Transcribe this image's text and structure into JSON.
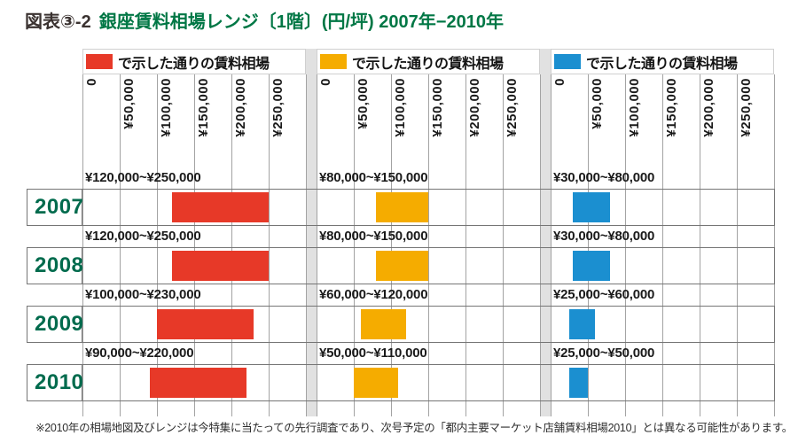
{
  "title": {
    "prefix": "図表③-2",
    "main": "銀座賃料相場レンジ〔1階〕(円/坪) 2007年−2010年"
  },
  "legend": {
    "label": "で示した通りの賃料相場"
  },
  "footnote": "※2010年の相場地図及びレンジは今特集に当たっての先行調査であり、次号予定の「都内主要マーケット店舗賃料相場2010」とは異なる可能性があります。",
  "colors": {
    "red": "#e73928",
    "yellow": "#f5ac00",
    "blue": "#1b8fd0",
    "title_green": "#007745",
    "year_green": "#006b4d",
    "grid": "#a3a3a3",
    "row_border": "#757575",
    "separator": "#e1e1e1"
  },
  "axis": {
    "tick_labels": [
      "0",
      "¥50,000",
      "¥100,000",
      "¥150,000",
      "¥200,000",
      "¥250,000"
    ],
    "min": 0,
    "max": 300000,
    "step": 50000
  },
  "chart_data": {
    "type": "bar",
    "subtype": "range-bar",
    "title": "図表③-2 銀座賃料相場レンジ〔1階〕(円/坪) 2007年−2010年",
    "unit": "円/坪",
    "categories": [
      "2007",
      "2008",
      "2009",
      "2010"
    ],
    "xlim": [
      0,
      300000
    ],
    "x_ticks": [
      0,
      50000,
      100000,
      150000,
      200000,
      250000
    ],
    "legend_position": "top",
    "grid": true,
    "series": [
      {
        "name": "で示した通りの賃料相場（赤）",
        "color_key": "red",
        "ranges": [
          [
            120000,
            250000
          ],
          [
            120000,
            250000
          ],
          [
            100000,
            230000
          ],
          [
            90000,
            220000
          ]
        ],
        "range_labels": [
          "¥120,000~¥250,000",
          "¥120,000~¥250,000",
          "¥100,000~¥230,000",
          "¥90,000~¥220,000"
        ]
      },
      {
        "name": "で示した通りの賃料相場（黄）",
        "color_key": "yellow",
        "ranges": [
          [
            80000,
            150000
          ],
          [
            80000,
            150000
          ],
          [
            60000,
            120000
          ],
          [
            50000,
            110000
          ]
        ],
        "range_labels": [
          "¥80,000~¥150,000",
          "¥80,000~¥150,000",
          "¥60,000~¥120,000",
          "¥50,000~¥110,000"
        ]
      },
      {
        "name": "で示した通りの賃料相場（青）",
        "color_key": "blue",
        "ranges": [
          [
            30000,
            80000
          ],
          [
            30000,
            80000
          ],
          [
            25000,
            60000
          ],
          [
            25000,
            50000
          ]
        ],
        "range_labels": [
          "¥30,000~¥80,000",
          "¥30,000~¥80,000",
          "¥25,000~¥60,000",
          "¥25,000~¥50,000"
        ]
      }
    ]
  }
}
